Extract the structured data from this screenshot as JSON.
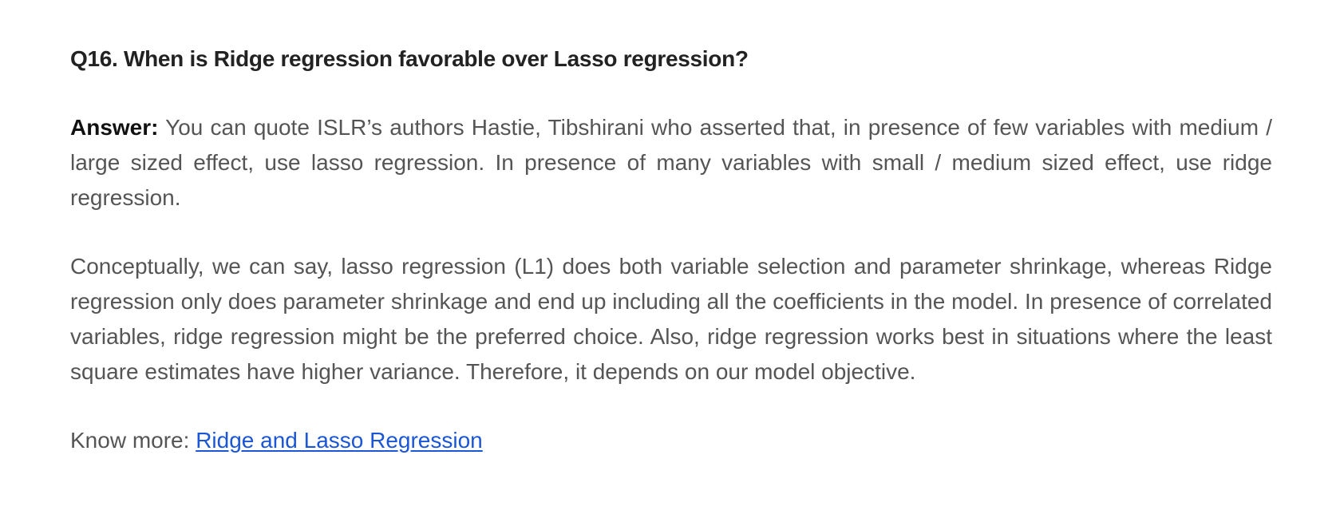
{
  "question": {
    "title": "Q16. When is Ridge regression favorable over Lasso regression?"
  },
  "answer": {
    "label": "Answer:",
    "text": "You can quote ISLR’s authors Hastie, Tibshirani who asserted that, in presence of few variables with medium / large sized effect, use lasso regression. In presence of many variables with small / medium sized effect, use ridge regression."
  },
  "explanation": {
    "text": "Conceptually, we can say, lasso regression (L1) does both variable selection and parameter shrinkage, whereas Ridge regression only does parameter shrinkage and end up including all the coefficients in the model. In presence of correlated variables, ridge regression might be the preferred choice. Also, ridge regression works best in situations where the least square estimates have higher variance. Therefore, it depends on our model objective."
  },
  "know_more": {
    "prefix": "Know more:",
    "link_text": "Ridge and Lasso Regression"
  },
  "colors": {
    "heading": "#222222",
    "body_text": "#555555",
    "link": "#1a56d6"
  }
}
